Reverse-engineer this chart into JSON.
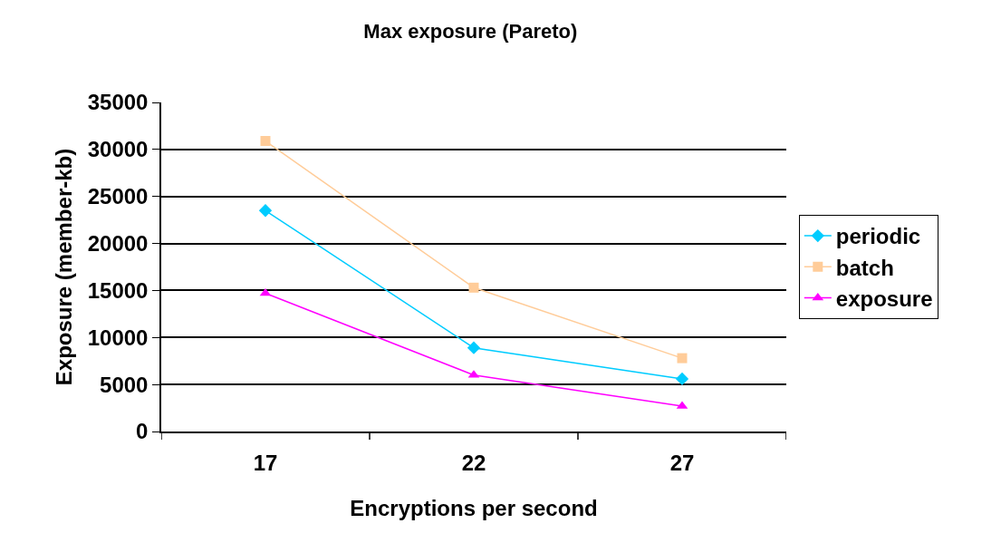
{
  "chart_data": {
    "type": "line",
    "title": "Max exposure (Pareto)",
    "xlabel": "Encryptions per second",
    "ylabel": "Exposure (member-kb)",
    "categories": [
      "17",
      "22",
      "27"
    ],
    "series": [
      {
        "name": "periodic",
        "color": "#00ccff",
        "marker": "diamond",
        "values": [
          23500,
          8900,
          5600
        ]
      },
      {
        "name": "batch",
        "color": "#ffcc99",
        "marker": "square",
        "values": [
          30900,
          15300,
          7800
        ]
      },
      {
        "name": "exposure",
        "color": "#ff00ff",
        "marker": "triangle",
        "values": [
          14700,
          6000,
          2700
        ]
      }
    ],
    "ylim": [
      0,
      35000
    ],
    "yticks": [
      0,
      5000,
      10000,
      15000,
      20000,
      25000,
      30000,
      35000
    ],
    "grid": "y",
    "legend": "right",
    "line_style": "solid"
  }
}
